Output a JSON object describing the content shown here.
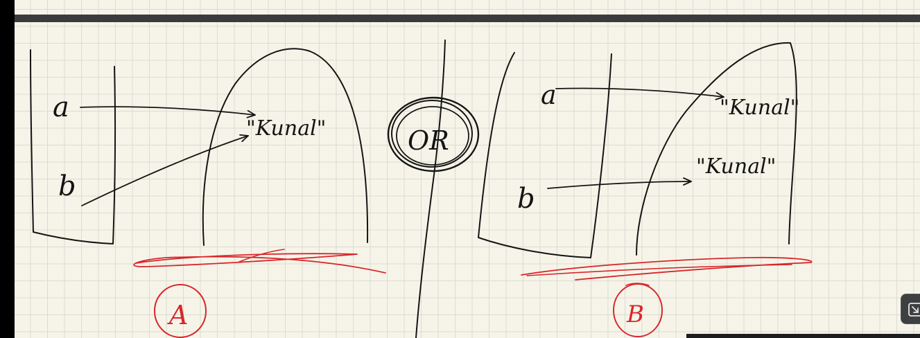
{
  "canvas": {
    "background_color": "#f6f4e8",
    "grid_color": "#dcdbd3",
    "divider_color": "#3a3b3d"
  },
  "ink_colors": {
    "pen": "#141414",
    "highlight": "#d8262b"
  },
  "diagram_a": {
    "variable_a": "a",
    "variable_b": "b",
    "string_value": "\"Kunal\"",
    "label": "A"
  },
  "separator": {
    "label": "OR"
  },
  "diagram_b": {
    "variable_a": "a",
    "variable_b": "b",
    "string_value_1": "\"Kunal\"",
    "string_value_2": "\"Kunal\"",
    "label": "B"
  },
  "controls": {
    "expand_icon": "expand-icon"
  }
}
